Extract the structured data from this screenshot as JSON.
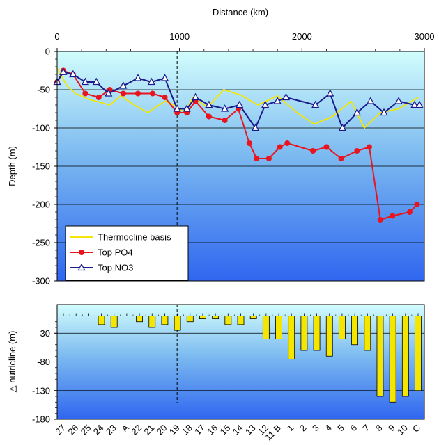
{
  "chart_data": [
    {
      "type": "line",
      "xlabel": "Distance (km)",
      "ylabel": "Depth (m)",
      "xlim": [
        0,
        3000
      ],
      "ylim": [
        -300,
        0
      ],
      "x_axis_position": "top",
      "xticks": [
        0,
        1000,
        2000,
        3000
      ],
      "yticks": [
        0,
        -50,
        -100,
        -150,
        -200,
        -250,
        -300
      ],
      "grid": "horizontal",
      "legend_position": "bottom-left",
      "reference_line": {
        "x": 980,
        "style": "dashed"
      },
      "colors": {
        "Thermocline basis": "#f5e600",
        "Top PO4": "#e8141e",
        "Top NO3": "#1a1a8c"
      },
      "series": [
        {
          "name": "Thermocline basis",
          "marker": "none",
          "x": [
            0,
            80,
            150,
            250,
            340,
            430,
            520,
            630,
            740,
            880,
            980,
            1040,
            1110,
            1230,
            1360,
            1500,
            1640,
            1800,
            1960,
            2100,
            2250,
            2400,
            2510,
            2640,
            2790,
            2950
          ],
          "y": [
            -22,
            -45,
            -55,
            -62,
            -66,
            -70,
            -58,
            -70,
            -80,
            -65,
            -72,
            -80,
            -60,
            -73,
            -50,
            -57,
            -70,
            -58,
            -80,
            -95,
            -85,
            -65,
            -100,
            -80,
            -75,
            -60
          ]
        },
        {
          "name": "Top PO4",
          "marker": "circle",
          "x": [
            0,
            50,
            130,
            230,
            340,
            430,
            540,
            660,
            780,
            880,
            980,
            1060,
            1130,
            1240,
            1370,
            1480,
            1570,
            1630,
            1730,
            1820,
            1880,
            2090,
            2200,
            2320,
            2450,
            2550,
            2640,
            2740,
            2880,
            2940
          ],
          "y": [
            -40,
            -25,
            -30,
            -55,
            -60,
            -50,
            -55,
            -55,
            -55,
            -60,
            -80,
            -80,
            -65,
            -85,
            -90,
            -75,
            -120,
            -140,
            -140,
            -125,
            -120,
            -130,
            -125,
            -140,
            -130,
            -125,
            -220,
            -215,
            -210,
            -200
          ]
        },
        {
          "name": "Top NO3",
          "marker": "triangle",
          "x": [
            0,
            50,
            130,
            230,
            320,
            420,
            540,
            660,
            770,
            880,
            980,
            1060,
            1130,
            1240,
            1370,
            1490,
            1620,
            1700,
            1800,
            1870,
            2110,
            2230,
            2330,
            2450,
            2560,
            2670,
            2790,
            2920,
            2960
          ],
          "y": [
            -40,
            -27,
            -30,
            -40,
            -40,
            -55,
            -45,
            -35,
            -40,
            -35,
            -75,
            -75,
            -60,
            -70,
            -75,
            -70,
            -100,
            -70,
            -65,
            -60,
            -70,
            -55,
            -100,
            -80,
            -65,
            -80,
            -65,
            -70,
            -70
          ]
        }
      ]
    },
    {
      "type": "bar",
      "ylabel": "△ nutricline (m)",
      "ylim": [
        -180,
        20
      ],
      "yticks": [
        -30,
        -80,
        -130,
        -180
      ],
      "grid": "horizontal",
      "bar_color": "#f5e600",
      "reference_line": {
        "x": 980,
        "style": "dashed"
      },
      "categories": [
        "27",
        "26",
        "25",
        "24",
        "23",
        "A",
        "22",
        "21",
        "20",
        "19",
        "18",
        "17",
        "16",
        "15",
        "14",
        "13",
        "12",
        "11 B",
        "1",
        "2",
        "3",
        "4",
        "5",
        "6",
        "7",
        "8",
        "9",
        "10",
        "C"
      ],
      "values": [
        0,
        0,
        0,
        -15,
        -20,
        0,
        -10,
        -20,
        -15,
        -25,
        -10,
        -5,
        -5,
        -15,
        -15,
        -5,
        -40,
        -40,
        -75,
        -60,
        -60,
        -70,
        -40,
        -50,
        -60,
        -140,
        -150,
        -140,
        -130
      ]
    }
  ]
}
